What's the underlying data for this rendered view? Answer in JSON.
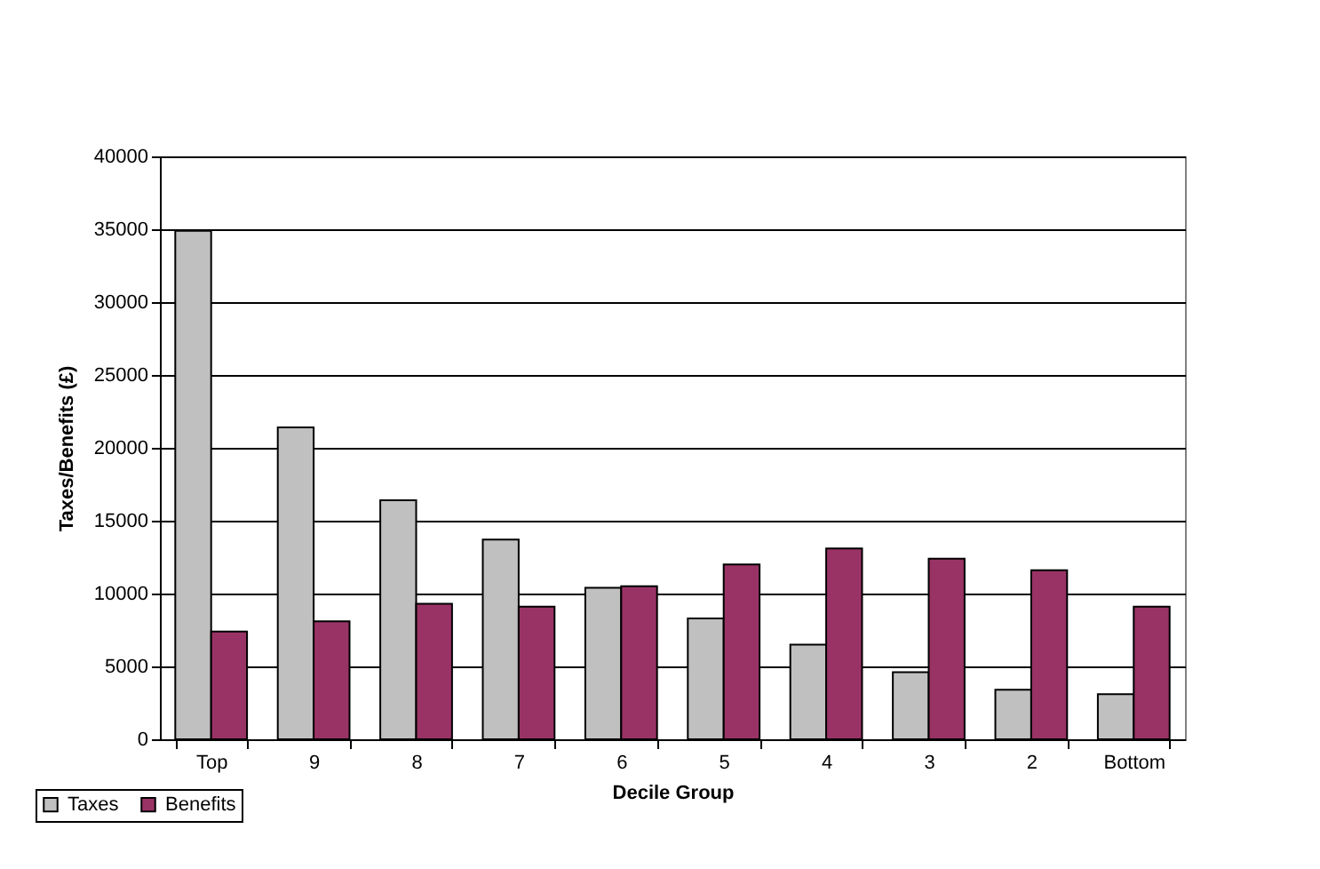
{
  "chart_data": {
    "type": "bar",
    "xlabel": "Decile Group",
    "ylabel": "Taxes/Benefits (£)",
    "categories": [
      "Top",
      "9",
      "8",
      "7",
      "6",
      "5",
      "4",
      "3",
      "2",
      "Bottom"
    ],
    "series": [
      {
        "name": "Taxes",
        "color": "#c0c0c0",
        "values": [
          34900,
          21400,
          16400,
          13700,
          10400,
          8300,
          6500,
          4600,
          3400,
          3100
        ]
      },
      {
        "name": "Benefits",
        "color": "#993366",
        "values": [
          7400,
          8100,
          9300,
          9100,
          10500,
          12000,
          13100,
          12400,
          11600,
          9100
        ]
      }
    ],
    "ylim": [
      0,
      40000
    ],
    "yticks": [
      0,
      5000,
      10000,
      15000,
      20000,
      25000,
      30000,
      35000,
      40000
    ],
    "grid": "y",
    "legend": "bottom"
  }
}
